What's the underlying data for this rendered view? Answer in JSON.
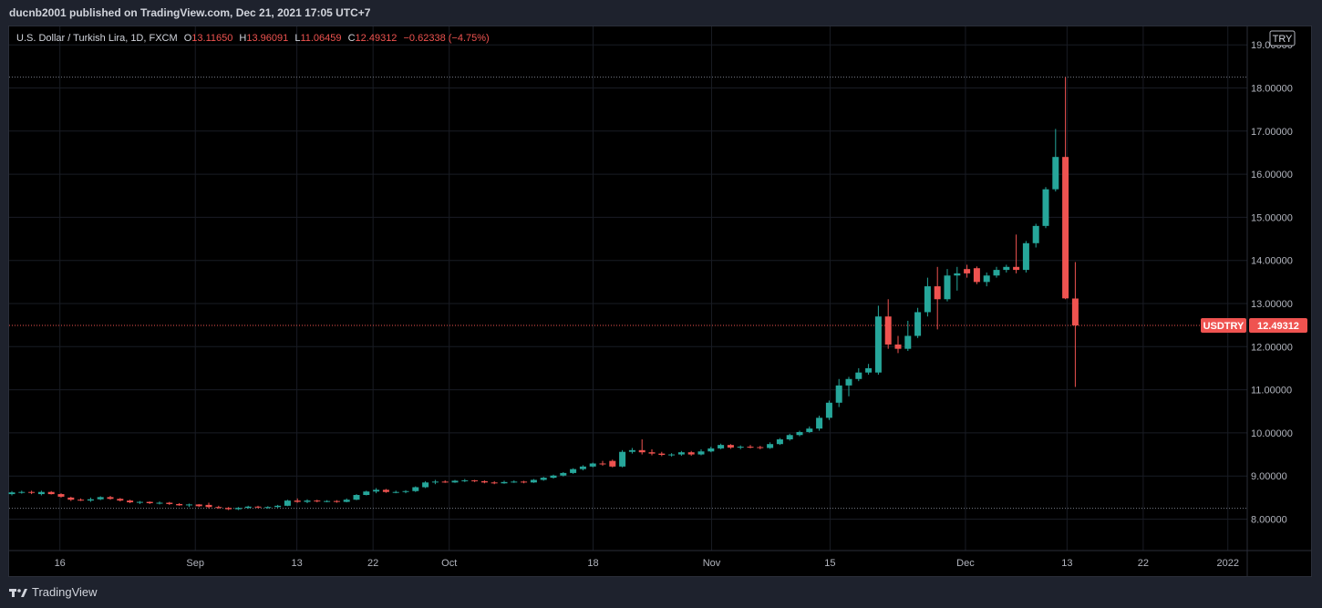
{
  "header": {
    "published": "ducnb2001 published on TradingView.com, Dec 21, 2021 17:05 UTC+7"
  },
  "legend": {
    "symbol": "U.S. Dollar / Turkish Lira, 1D, FXCM",
    "o_label": "O",
    "o_value": "13.11650",
    "h_label": "H",
    "h_value": "13.96091",
    "l_label": "L",
    "l_value": "11.06459",
    "c_label": "C",
    "c_value": "12.49312",
    "change": "−0.62338 (−4.75%)"
  },
  "currency_label": "TRY",
  "ticker_label": "USDTRY",
  "price_label": "12.49312",
  "footer": {
    "brand": "TradingView"
  },
  "colors": {
    "up": "#26a69a",
    "down": "#ef5350",
    "grid": "#191c24",
    "axis_text": "#b2b5be",
    "text": "#d1d4dc"
  },
  "chart_data": {
    "type": "candlestick",
    "symbol": "USDTRY",
    "interval": "1D",
    "y_ticks": [
      "8.00000",
      "9.00000",
      "10.00000",
      "11.00000",
      "12.00000",
      "13.00000",
      "14.00000",
      "15.00000",
      "16.00000",
      "17.00000",
      "18.00000",
      "19.00000"
    ],
    "x_ticks": [
      {
        "label": "16",
        "date": "2021-08-16"
      },
      {
        "label": "Sep",
        "date": "2021-09-01"
      },
      {
        "label": "13",
        "date": "2021-09-13"
      },
      {
        "label": "22",
        "date": "2021-09-22"
      },
      {
        "label": "Oct",
        "date": "2021-10-01"
      },
      {
        "label": "18",
        "date": "2021-10-18"
      },
      {
        "label": "Nov",
        "date": "2021-11-01"
      },
      {
        "label": "15",
        "date": "2021-11-15"
      },
      {
        "label": "Dec",
        "date": "2021-12-01"
      },
      {
        "label": "13",
        "date": "2021-12-13"
      },
      {
        "label": "22",
        "date": "2021-12-22"
      },
      {
        "label": "2022",
        "date": "2022-01-01"
      }
    ],
    "x_range": [
      "2021-08-10",
      "2022-01-02"
    ],
    "y_range": [
      7.3,
      19.3
    ],
    "high_line": 18.25,
    "low_line": 8.25,
    "last_price": 12.49312,
    "candles": [
      {
        "d": "2021-08-10",
        "o": 8.58,
        "h": 8.65,
        "l": 8.55,
        "c": 8.62
      },
      {
        "d": "2021-08-11",
        "o": 8.62,
        "h": 8.66,
        "l": 8.59,
        "c": 8.63
      },
      {
        "d": "2021-08-12",
        "o": 8.63,
        "h": 8.66,
        "l": 8.58,
        "c": 8.61
      },
      {
        "d": "2021-08-13",
        "o": 8.58,
        "h": 8.66,
        "l": 8.55,
        "c": 8.63
      },
      {
        "d": "2021-08-14",
        "o": 8.63,
        "h": 8.65,
        "l": 8.57,
        "c": 8.58
      },
      {
        "d": "2021-08-15",
        "o": 8.58,
        "h": 8.6,
        "l": 8.5,
        "c": 8.52
      },
      {
        "d": "2021-08-16",
        "o": 8.5,
        "h": 8.52,
        "l": 8.42,
        "c": 8.45
      },
      {
        "d": "2021-08-17",
        "o": 8.45,
        "h": 8.48,
        "l": 8.42,
        "c": 8.43
      },
      {
        "d": "2021-08-18",
        "o": 8.43,
        "h": 8.5,
        "l": 8.4,
        "c": 8.46
      },
      {
        "d": "2021-08-19",
        "o": 8.46,
        "h": 8.53,
        "l": 8.44,
        "c": 8.51
      },
      {
        "d": "2021-08-20",
        "o": 8.51,
        "h": 8.54,
        "l": 8.45,
        "c": 8.47
      },
      {
        "d": "2021-08-21",
        "o": 8.47,
        "h": 8.49,
        "l": 8.41,
        "c": 8.43
      },
      {
        "d": "2021-08-22",
        "o": 8.43,
        "h": 8.45,
        "l": 8.37,
        "c": 8.39
      },
      {
        "d": "2021-08-23",
        "o": 8.39,
        "h": 8.42,
        "l": 8.35,
        "c": 8.4
      },
      {
        "d": "2021-08-24",
        "o": 8.4,
        "h": 8.41,
        "l": 8.35,
        "c": 8.37
      },
      {
        "d": "2021-08-25",
        "o": 8.37,
        "h": 8.41,
        "l": 8.34,
        "c": 8.38
      },
      {
        "d": "2021-08-26",
        "o": 8.38,
        "h": 8.4,
        "l": 8.33,
        "c": 8.35
      },
      {
        "d": "2021-08-27",
        "o": 8.35,
        "h": 8.37,
        "l": 8.31,
        "c": 8.32
      },
      {
        "d": "2021-08-28",
        "o": 8.32,
        "h": 8.36,
        "l": 8.28,
        "c": 8.34
      },
      {
        "d": "2021-08-29",
        "o": 8.34,
        "h": 8.35,
        "l": 8.28,
        "c": 8.3
      },
      {
        "d": "2021-08-30",
        "o": 8.33,
        "h": 8.38,
        "l": 8.25,
        "c": 8.28
      },
      {
        "d": "2021-08-31",
        "o": 8.28,
        "h": 8.31,
        "l": 8.24,
        "c": 8.26
      },
      {
        "d": "2021-09-01",
        "o": 8.26,
        "h": 8.28,
        "l": 8.21,
        "c": 8.23
      },
      {
        "d": "2021-09-02",
        "o": 8.23,
        "h": 8.28,
        "l": 8.21,
        "c": 8.26
      },
      {
        "d": "2021-09-03",
        "o": 8.26,
        "h": 8.31,
        "l": 8.24,
        "c": 8.29
      },
      {
        "d": "2021-09-04",
        "o": 8.29,
        "h": 8.31,
        "l": 8.25,
        "c": 8.27
      },
      {
        "d": "2021-09-05",
        "o": 8.27,
        "h": 8.3,
        "l": 8.24,
        "c": 8.28
      },
      {
        "d": "2021-09-06",
        "o": 8.28,
        "h": 8.33,
        "l": 8.26,
        "c": 8.31
      },
      {
        "d": "2021-09-07",
        "o": 8.31,
        "h": 8.45,
        "l": 8.3,
        "c": 8.43
      },
      {
        "d": "2021-09-08",
        "o": 8.43,
        "h": 8.48,
        "l": 8.38,
        "c": 8.4
      },
      {
        "d": "2021-09-09",
        "o": 8.4,
        "h": 8.46,
        "l": 8.37,
        "c": 8.43
      },
      {
        "d": "2021-09-10",
        "o": 8.43,
        "h": 8.45,
        "l": 8.39,
        "c": 8.41
      },
      {
        "d": "2021-09-11",
        "o": 8.41,
        "h": 8.44,
        "l": 8.39,
        "c": 8.42
      },
      {
        "d": "2021-09-12",
        "o": 8.42,
        "h": 8.44,
        "l": 8.38,
        "c": 8.4
      },
      {
        "d": "2021-09-13",
        "o": 8.4,
        "h": 8.48,
        "l": 8.39,
        "c": 8.45
      },
      {
        "d": "2021-09-14",
        "o": 8.45,
        "h": 8.58,
        "l": 8.44,
        "c": 8.56
      },
      {
        "d": "2021-09-15",
        "o": 8.56,
        "h": 8.66,
        "l": 8.55,
        "c": 8.64
      },
      {
        "d": "2021-09-16",
        "o": 8.64,
        "h": 8.72,
        "l": 8.6,
        "c": 8.68
      },
      {
        "d": "2021-09-17",
        "o": 8.68,
        "h": 8.7,
        "l": 8.61,
        "c": 8.63
      },
      {
        "d": "2021-09-18",
        "o": 8.62,
        "h": 8.66,
        "l": 8.6,
        "c": 8.63
      },
      {
        "d": "2021-09-19",
        "o": 8.63,
        "h": 8.67,
        "l": 8.6,
        "c": 8.65
      },
      {
        "d": "2021-09-20",
        "o": 8.65,
        "h": 8.76,
        "l": 8.63,
        "c": 8.74
      },
      {
        "d": "2021-09-21",
        "o": 8.74,
        "h": 8.88,
        "l": 8.72,
        "c": 8.85
      },
      {
        "d": "2021-09-22",
        "o": 8.85,
        "h": 8.91,
        "l": 8.81,
        "c": 8.87
      },
      {
        "d": "2021-09-23",
        "o": 8.87,
        "h": 8.9,
        "l": 8.84,
        "c": 8.85
      },
      {
        "d": "2021-09-24",
        "o": 8.85,
        "h": 8.91,
        "l": 8.84,
        "c": 8.89
      },
      {
        "d": "2021-09-25",
        "o": 8.89,
        "h": 8.93,
        "l": 8.86,
        "c": 8.9
      },
      {
        "d": "2021-09-26",
        "o": 8.9,
        "h": 8.91,
        "l": 8.86,
        "c": 8.88
      },
      {
        "d": "2021-09-27",
        "o": 8.88,
        "h": 8.9,
        "l": 8.83,
        "c": 8.85
      },
      {
        "d": "2021-09-28",
        "o": 8.85,
        "h": 8.88,
        "l": 8.81,
        "c": 8.83
      },
      {
        "d": "2021-09-29",
        "o": 8.83,
        "h": 8.89,
        "l": 8.82,
        "c": 8.86
      },
      {
        "d": "2021-09-30",
        "o": 8.86,
        "h": 8.9,
        "l": 8.84,
        "c": 8.87
      },
      {
        "d": "2021-10-01",
        "o": 8.87,
        "h": 8.89,
        "l": 8.83,
        "c": 8.85
      },
      {
        "d": "2021-10-02",
        "o": 8.85,
        "h": 8.93,
        "l": 8.84,
        "c": 8.91
      },
      {
        "d": "2021-10-03",
        "o": 8.91,
        "h": 8.98,
        "l": 8.89,
        "c": 8.96
      },
      {
        "d": "2021-10-04",
        "o": 8.96,
        "h": 9.03,
        "l": 8.94,
        "c": 9.01
      },
      {
        "d": "2021-10-05",
        "o": 9.01,
        "h": 9.09,
        "l": 8.99,
        "c": 9.07
      },
      {
        "d": "2021-10-06",
        "o": 9.07,
        "h": 9.18,
        "l": 9.05,
        "c": 9.16
      },
      {
        "d": "2021-10-07",
        "o": 9.16,
        "h": 9.25,
        "l": 9.13,
        "c": 9.22
      },
      {
        "d": "2021-10-08",
        "o": 9.22,
        "h": 9.31,
        "l": 9.2,
        "c": 9.29
      },
      {
        "d": "2021-10-09",
        "o": 9.29,
        "h": 9.35,
        "l": 9.24,
        "c": 9.27
      },
      {
        "d": "2021-10-10",
        "o": 9.35,
        "h": 9.38,
        "l": 9.2,
        "c": 9.22
      },
      {
        "d": "2021-10-11",
        "o": 9.22,
        "h": 9.6,
        "l": 9.2,
        "c": 9.56
      },
      {
        "d": "2021-10-12",
        "o": 9.56,
        "h": 9.65,
        "l": 9.52,
        "c": 9.6
      },
      {
        "d": "2021-10-13",
        "o": 9.6,
        "h": 9.85,
        "l": 9.5,
        "c": 9.55
      },
      {
        "d": "2021-10-14",
        "o": 9.55,
        "h": 9.62,
        "l": 9.48,
        "c": 9.52
      },
      {
        "d": "2021-10-15",
        "o": 9.52,
        "h": 9.56,
        "l": 9.46,
        "c": 9.49
      },
      {
        "d": "2021-10-16",
        "o": 9.49,
        "h": 9.53,
        "l": 9.45,
        "c": 9.5
      },
      {
        "d": "2021-10-17",
        "o": 9.5,
        "h": 9.58,
        "l": 9.47,
        "c": 9.55
      },
      {
        "d": "2021-10-18",
        "o": 9.55,
        "h": 9.58,
        "l": 9.47,
        "c": 9.5
      },
      {
        "d": "2021-10-19",
        "o": 9.5,
        "h": 9.62,
        "l": 9.48,
        "c": 9.57
      },
      {
        "d": "2021-10-20",
        "o": 9.57,
        "h": 9.68,
        "l": 9.55,
        "c": 9.64
      },
      {
        "d": "2021-10-21",
        "o": 9.64,
        "h": 9.75,
        "l": 9.62,
        "c": 9.72
      },
      {
        "d": "2021-10-22",
        "o": 9.72,
        "h": 9.74,
        "l": 9.63,
        "c": 9.66
      },
      {
        "d": "2021-10-23",
        "o": 9.66,
        "h": 9.71,
        "l": 9.62,
        "c": 9.68
      },
      {
        "d": "2021-10-24",
        "o": 9.68,
        "h": 9.72,
        "l": 9.64,
        "c": 9.67
      },
      {
        "d": "2021-10-25",
        "o": 9.67,
        "h": 9.7,
        "l": 9.62,
        "c": 9.65
      },
      {
        "d": "2021-10-26",
        "o": 9.65,
        "h": 9.78,
        "l": 9.63,
        "c": 9.74
      },
      {
        "d": "2021-10-27",
        "o": 9.74,
        "h": 9.88,
        "l": 9.72,
        "c": 9.85
      },
      {
        "d": "2021-10-28",
        "o": 9.85,
        "h": 9.98,
        "l": 9.82,
        "c": 9.95
      },
      {
        "d": "2021-10-29",
        "o": 9.95,
        "h": 10.05,
        "l": 9.92,
        "c": 10.02
      },
      {
        "d": "2021-10-30",
        "o": 10.02,
        "h": 10.15,
        "l": 10.0,
        "c": 10.1
      },
      {
        "d": "2021-10-31",
        "o": 10.1,
        "h": 10.4,
        "l": 10.05,
        "c": 10.35
      },
      {
        "d": "2021-11-01",
        "o": 10.35,
        "h": 10.75,
        "l": 10.3,
        "c": 10.7
      },
      {
        "d": "2021-11-02",
        "o": 10.7,
        "h": 11.25,
        "l": 10.6,
        "c": 11.1
      },
      {
        "d": "2021-11-03",
        "o": 11.1,
        "h": 11.3,
        "l": 10.85,
        "c": 11.25
      },
      {
        "d": "2021-11-04",
        "o": 11.25,
        "h": 11.5,
        "l": 11.2,
        "c": 11.4
      },
      {
        "d": "2021-11-05",
        "o": 11.4,
        "h": 11.6,
        "l": 11.35,
        "c": 11.5
      },
      {
        "d": "2021-11-06",
        "o": 11.4,
        "h": 12.95,
        "l": 11.35,
        "c": 12.7
      },
      {
        "d": "2021-11-07",
        "o": 12.7,
        "h": 13.1,
        "l": 11.95,
        "c": 12.05
      },
      {
        "d": "2021-11-08",
        "o": 12.05,
        "h": 12.25,
        "l": 11.85,
        "c": 11.95
      },
      {
        "d": "2021-11-09",
        "o": 11.95,
        "h": 12.6,
        "l": 11.9,
        "c": 12.25
      },
      {
        "d": "2021-11-10",
        "o": 12.25,
        "h": 12.9,
        "l": 12.2,
        "c": 12.8
      },
      {
        "d": "2021-11-11",
        "o": 12.8,
        "h": 13.6,
        "l": 12.7,
        "c": 13.4
      },
      {
        "d": "2021-11-12",
        "o": 13.4,
        "h": 13.85,
        "l": 12.4,
        "c": 13.1
      },
      {
        "d": "2021-11-13",
        "o": 13.1,
        "h": 13.8,
        "l": 13.05,
        "c": 13.65
      },
      {
        "d": "2021-11-14",
        "o": 13.65,
        "h": 13.85,
        "l": 13.3,
        "c": 13.7
      },
      {
        "d": "2021-11-15",
        "o": 13.8,
        "h": 13.9,
        "l": 13.6,
        "c": 13.7
      },
      {
        "d": "2021-11-16",
        "o": 13.82,
        "h": 13.86,
        "l": 13.45,
        "c": 13.5
      },
      {
        "d": "2021-11-17",
        "o": 13.5,
        "h": 13.72,
        "l": 13.4,
        "c": 13.65
      },
      {
        "d": "2021-11-18",
        "o": 13.65,
        "h": 13.85,
        "l": 13.6,
        "c": 13.78
      },
      {
        "d": "2021-11-19",
        "o": 13.78,
        "h": 13.9,
        "l": 13.72,
        "c": 13.85
      },
      {
        "d": "2021-11-20",
        "o": 13.85,
        "h": 14.6,
        "l": 13.7,
        "c": 13.78
      },
      {
        "d": "2021-11-21",
        "o": 13.78,
        "h": 14.45,
        "l": 13.72,
        "c": 14.4
      },
      {
        "d": "2021-11-22",
        "o": 14.4,
        "h": 14.85,
        "l": 14.3,
        "c": 14.8
      },
      {
        "d": "2021-11-23",
        "o": 14.8,
        "h": 15.7,
        "l": 14.75,
        "c": 15.65
      },
      {
        "d": "2021-11-24",
        "o": 15.65,
        "h": 17.05,
        "l": 15.6,
        "c": 16.4
      },
      {
        "d": "2021-11-25",
        "o": 16.4,
        "h": 18.25,
        "l": 13.1,
        "c": 13.12
      },
      {
        "d": "2021-11-26",
        "o": 13.1165,
        "h": 13.96091,
        "l": 11.06459,
        "c": 12.49312
      }
    ]
  }
}
